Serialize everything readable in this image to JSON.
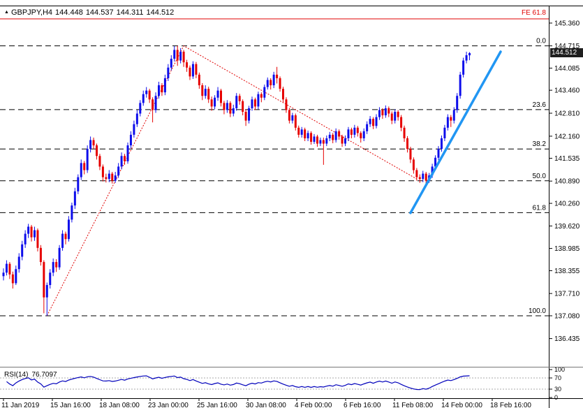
{
  "quote": {
    "marker_icon": "▲",
    "symbol": "GBPJPY,H4",
    "open": "144.448",
    "high": "144.537",
    "low": "144.311",
    "close": "144.512"
  },
  "price_axis": {
    "labels": [
      "145.360",
      "144.715",
      "144.085",
      "143.460",
      "142.810",
      "142.160",
      "141.535",
      "140.890",
      "140.260",
      "139.620",
      "138.985",
      "138.355",
      "137.710",
      "137.080",
      "136.435"
    ],
    "current_price": "144.512"
  },
  "time_axis": {
    "labels": [
      "11 Jan 2019",
      "15 Jan 16:00",
      "18 Jan 08:00",
      "23 Jan 00:00",
      "25 Jan 16:00",
      "30 Jan 08:00",
      "4 Feb 00:00",
      "6 Feb 16:00",
      "11 Feb 08:00",
      "14 Feb 00:00",
      "18 Feb 16:00"
    ]
  },
  "fibonacci": {
    "expansion_label": "FE 61.8",
    "expansion_price": 145.478,
    "levels": [
      {
        "label": "0.0",
        "price": 144.715
      },
      {
        "label": "23.6",
        "price": 142.913
      },
      {
        "label": "38.2",
        "price": 141.798
      },
      {
        "label": "50.0",
        "price": 140.898
      },
      {
        "label": "61.8",
        "price": 139.997
      },
      {
        "label": "100.0",
        "price": 137.08
      }
    ]
  },
  "rsi": {
    "name": "RSI(14)",
    "value": "76.7097",
    "levels": [
      {
        "label": "100",
        "value": 100
      },
      {
        "label": "70",
        "value": 70
      },
      {
        "label": "30",
        "value": 30
      },
      {
        "label": "0",
        "value": 0
      }
    ],
    "upper_band": 70,
    "lower_band": 30
  },
  "colors": {
    "bull_candle": "#0d0deb",
    "bear_candle": "#e60000",
    "trend_line": "#2196f3",
    "zigzag": "#e00000",
    "fib_line": "#000000",
    "fe_line": "#e00000",
    "rsi_line": "#0000bb",
    "rsi_band": "#a8a8a8",
    "axis_text": "#000000",
    "price_tag_bg": "#1f1f1f"
  },
  "chart_data": {
    "type": "candlestick",
    "symbol": "GBPJPY",
    "timeframe": "H4",
    "title": "GBPJPY,H4 144.448 144.537 144.311 144.512",
    "x_range": [
      "11 Jan 2019",
      "18 Feb 2019 16:00"
    ],
    "y_axis_range": [
      136.435,
      145.36
    ],
    "grid": "off",
    "candles": [
      [
        138.2,
        138.42,
        138.08,
        138.3
      ],
      [
        138.3,
        138.65,
        138.22,
        138.55
      ],
      [
        138.55,
        138.6,
        138.12,
        138.25
      ],
      [
        138.25,
        138.33,
        137.85,
        138.0
      ],
      [
        138.0,
        138.5,
        137.95,
        138.4
      ],
      [
        138.4,
        138.85,
        138.3,
        138.75
      ],
      [
        138.75,
        139.2,
        138.65,
        139.1
      ],
      [
        139.1,
        139.5,
        139.0,
        139.4
      ],
      [
        139.4,
        139.68,
        139.28,
        139.6
      ],
      [
        139.6,
        139.65,
        139.18,
        139.3
      ],
      [
        139.3,
        139.6,
        139.2,
        139.5
      ],
      [
        139.5,
        139.55,
        138.9,
        139.0
      ],
      [
        139.0,
        139.08,
        138.5,
        138.6
      ],
      [
        138.6,
        138.65,
        137.15,
        137.6
      ],
      [
        137.6,
        138.02,
        137.08,
        137.95
      ],
      [
        137.95,
        138.4,
        137.85,
        138.3
      ],
      [
        138.3,
        138.7,
        138.2,
        138.6
      ],
      [
        138.6,
        138.68,
        138.32,
        138.45
      ],
      [
        138.45,
        139.08,
        138.38,
        139.0
      ],
      [
        139.0,
        139.5,
        138.92,
        139.4
      ],
      [
        139.4,
        139.46,
        139.1,
        139.25
      ],
      [
        139.25,
        139.9,
        139.18,
        139.8
      ],
      [
        139.8,
        140.28,
        139.72,
        140.2
      ],
      [
        140.2,
        140.7,
        140.1,
        140.6
      ],
      [
        140.6,
        141.08,
        140.52,
        141.0
      ],
      [
        141.0,
        141.5,
        140.92,
        141.4
      ],
      [
        141.4,
        141.46,
        141.08,
        141.2
      ],
      [
        141.2,
        141.9,
        141.12,
        141.8
      ],
      [
        141.8,
        142.15,
        141.7,
        142.05
      ],
      [
        142.05,
        142.12,
        141.8,
        141.9
      ],
      [
        141.9,
        141.95,
        141.5,
        141.6
      ],
      [
        141.6,
        141.66,
        141.2,
        141.3
      ],
      [
        141.3,
        141.36,
        140.88,
        141.0
      ],
      [
        141.0,
        141.1,
        140.85,
        140.95
      ],
      [
        140.95,
        141.2,
        140.86,
        141.1
      ],
      [
        141.1,
        141.15,
        140.82,
        140.9
      ],
      [
        140.9,
        141.15,
        140.84,
        141.05
      ],
      [
        141.05,
        141.4,
        140.98,
        141.3
      ],
      [
        141.3,
        141.7,
        141.22,
        141.6
      ],
      [
        141.6,
        141.66,
        141.35,
        141.45
      ],
      [
        141.45,
        141.98,
        141.38,
        141.9
      ],
      [
        141.9,
        142.3,
        141.82,
        142.2
      ],
      [
        142.2,
        142.6,
        142.12,
        142.5
      ],
      [
        142.5,
        142.9,
        142.42,
        142.8
      ],
      [
        142.8,
        143.18,
        142.72,
        143.1
      ],
      [
        143.1,
        143.45,
        143.02,
        143.35
      ],
      [
        143.35,
        143.55,
        143.25,
        143.45
      ],
      [
        143.45,
        143.5,
        143.1,
        143.2
      ],
      [
        143.2,
        143.26,
        142.55,
        142.9
      ],
      [
        142.9,
        143.4,
        142.82,
        143.3
      ],
      [
        143.3,
        143.7,
        143.22,
        143.6
      ],
      [
        143.6,
        143.66,
        143.3,
        143.4
      ],
      [
        143.4,
        143.9,
        143.32,
        143.8
      ],
      [
        143.8,
        144.2,
        143.72,
        144.1
      ],
      [
        144.1,
        144.45,
        144.02,
        144.35
      ],
      [
        144.35,
        144.71,
        144.27,
        144.6
      ],
      [
        144.6,
        144.715,
        144.15,
        144.3
      ],
      [
        144.3,
        144.65,
        144.22,
        144.55
      ],
      [
        144.55,
        144.6,
        144.12,
        144.25
      ],
      [
        144.25,
        144.32,
        143.98,
        144.1
      ],
      [
        144.1,
        144.16,
        143.75,
        143.85
      ],
      [
        143.85,
        144.28,
        143.78,
        144.2
      ],
      [
        144.2,
        144.26,
        143.8,
        143.9
      ],
      [
        143.9,
        143.96,
        143.5,
        143.6
      ],
      [
        143.6,
        143.66,
        143.18,
        143.3
      ],
      [
        143.3,
        143.6,
        143.22,
        143.5
      ],
      [
        143.5,
        143.56,
        143.1,
        143.2
      ],
      [
        143.2,
        143.28,
        142.88,
        143.0
      ],
      [
        143.0,
        143.32,
        142.92,
        143.25
      ],
      [
        143.25,
        143.55,
        143.16,
        143.45
      ],
      [
        143.45,
        143.5,
        143.0,
        143.1
      ],
      [
        143.1,
        143.16,
        142.78,
        142.9
      ],
      [
        142.9,
        143.18,
        142.82,
        143.1
      ],
      [
        143.1,
        143.15,
        142.7,
        142.8
      ],
      [
        142.8,
        143.05,
        142.72,
        142.95
      ],
      [
        142.95,
        143.38,
        142.88,
        143.3
      ],
      [
        143.3,
        143.36,
        143.05,
        143.15
      ],
      [
        143.15,
        143.2,
        142.75,
        142.85
      ],
      [
        142.85,
        142.92,
        142.45,
        142.6
      ],
      [
        142.6,
        143.02,
        142.52,
        142.95
      ],
      [
        142.95,
        143.28,
        142.88,
        143.2
      ],
      [
        143.2,
        143.25,
        142.9,
        143.0
      ],
      [
        143.0,
        143.42,
        142.92,
        143.35
      ],
      [
        143.35,
        143.4,
        143.12,
        143.25
      ],
      [
        143.25,
        143.62,
        143.18,
        143.55
      ],
      [
        143.55,
        143.82,
        143.48,
        143.75
      ],
      [
        143.75,
        143.8,
        143.48,
        143.6
      ],
      [
        143.6,
        143.98,
        143.52,
        143.9
      ],
      [
        143.9,
        144.12,
        143.65,
        143.8
      ],
      [
        143.8,
        143.85,
        143.42,
        143.5
      ],
      [
        143.5,
        143.56,
        143.12,
        143.2
      ],
      [
        143.2,
        143.26,
        142.82,
        142.9
      ],
      [
        142.9,
        142.96,
        142.52,
        142.6
      ],
      [
        142.6,
        142.82,
        142.52,
        142.75
      ],
      [
        142.75,
        142.8,
        142.32,
        142.4
      ],
      [
        142.4,
        142.46,
        142.12,
        142.2
      ],
      [
        142.2,
        142.42,
        142.12,
        142.35
      ],
      [
        142.35,
        142.4,
        142.02,
        142.1
      ],
      [
        142.1,
        142.32,
        142.02,
        142.25
      ],
      [
        142.25,
        142.3,
        141.92,
        142.0
      ],
      [
        142.0,
        142.22,
        141.94,
        142.15
      ],
      [
        142.15,
        142.2,
        141.86,
        141.95
      ],
      [
        141.95,
        142.12,
        141.88,
        142.05
      ],
      [
        142.05,
        142.12,
        141.35,
        141.95
      ],
      [
        141.95,
        142.18,
        141.88,
        142.1
      ],
      [
        142.1,
        142.28,
        142.02,
        142.2
      ],
      [
        142.2,
        142.25,
        141.96,
        142.05
      ],
      [
        142.05,
        142.38,
        141.98,
        142.3
      ],
      [
        142.3,
        142.35,
        142.06,
        142.15
      ],
      [
        142.15,
        142.2,
        141.86,
        141.95
      ],
      [
        141.95,
        142.18,
        141.88,
        142.1
      ],
      [
        142.1,
        142.42,
        142.02,
        142.35
      ],
      [
        142.35,
        142.4,
        142.1,
        142.2
      ],
      [
        142.2,
        142.48,
        142.12,
        142.4
      ],
      [
        142.4,
        142.45,
        142.15,
        142.25
      ],
      [
        142.25,
        142.3,
        141.98,
        142.1
      ],
      [
        142.1,
        142.38,
        142.02,
        142.3
      ],
      [
        142.3,
        142.58,
        142.22,
        142.5
      ],
      [
        142.5,
        142.73,
        142.42,
        142.65
      ],
      [
        142.65,
        142.7,
        142.36,
        142.45
      ],
      [
        142.45,
        142.78,
        142.38,
        142.7
      ],
      [
        142.7,
        142.98,
        142.62,
        142.9
      ],
      [
        142.9,
        142.95,
        142.65,
        142.75
      ],
      [
        142.75,
        143.03,
        142.68,
        142.95
      ],
      [
        142.95,
        143.0,
        142.7,
        142.8
      ],
      [
        142.8,
        142.86,
        142.5,
        142.6
      ],
      [
        142.6,
        142.92,
        142.52,
        142.85
      ],
      [
        142.85,
        142.9,
        142.6,
        142.7
      ],
      [
        142.7,
        142.76,
        142.3,
        142.4
      ],
      [
        142.4,
        142.46,
        142.0,
        142.1
      ],
      [
        142.1,
        142.16,
        141.7,
        141.8
      ],
      [
        141.8,
        141.86,
        141.4,
        141.5
      ],
      [
        141.5,
        141.56,
        141.1,
        141.2
      ],
      [
        141.2,
        141.26,
        140.9,
        141.0
      ],
      [
        141.0,
        141.08,
        140.84,
        140.95
      ],
      [
        140.95,
        141.18,
        140.86,
        141.1
      ],
      [
        141.1,
        141.15,
        140.82,
        140.9
      ],
      [
        140.9,
        141.12,
        140.84,
        141.05
      ],
      [
        141.05,
        141.38,
        140.98,
        141.3
      ],
      [
        141.3,
        141.62,
        141.22,
        141.55
      ],
      [
        141.55,
        141.88,
        141.48,
        141.8
      ],
      [
        141.8,
        142.18,
        141.72,
        142.1
      ],
      [
        142.1,
        142.48,
        142.02,
        142.4
      ],
      [
        142.4,
        142.78,
        142.32,
        142.7
      ],
      [
        142.7,
        142.76,
        142.42,
        142.6
      ],
      [
        142.6,
        142.98,
        142.52,
        142.9
      ],
      [
        142.9,
        143.38,
        142.82,
        143.3
      ],
      [
        143.3,
        143.98,
        143.22,
        143.9
      ],
      [
        143.9,
        144.38,
        143.82,
        144.3
      ],
      [
        144.3,
        144.55,
        144.22,
        144.45
      ],
      [
        144.448,
        144.537,
        144.311,
        144.512
      ]
    ],
    "trend_line": {
      "from": {
        "index": 131,
        "price": 139.99
      },
      "to": {
        "index": 160,
        "price": 144.55
      }
    },
    "zigzag": [
      {
        "index": 14,
        "price": 137.08
      },
      {
        "index": 58,
        "price": 144.715
      },
      {
        "index": 133,
        "price": 140.95
      }
    ]
  }
}
